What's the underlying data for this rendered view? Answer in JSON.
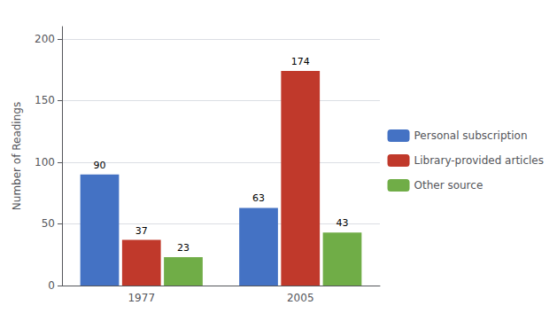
{
  "chart_data": {
    "type": "bar",
    "y_label": "Number of Readings",
    "categories": [
      "1977",
      "2005"
    ],
    "series": [
      {
        "name": "Personal subscription",
        "color": "#4472c4",
        "values": [
          90,
          63
        ]
      },
      {
        "name": "Library-provided articles",
        "color": "#c0392b",
        "values": [
          37,
          174
        ]
      },
      {
        "name": "Other source",
        "color": "#70ad47",
        "values": [
          23,
          43
        ]
      }
    ],
    "ylim": [
      0,
      210
    ],
    "yticks": [
      0,
      50,
      100,
      150,
      200
    ],
    "grid": true,
    "legend": "right",
    "data_labels": true
  }
}
